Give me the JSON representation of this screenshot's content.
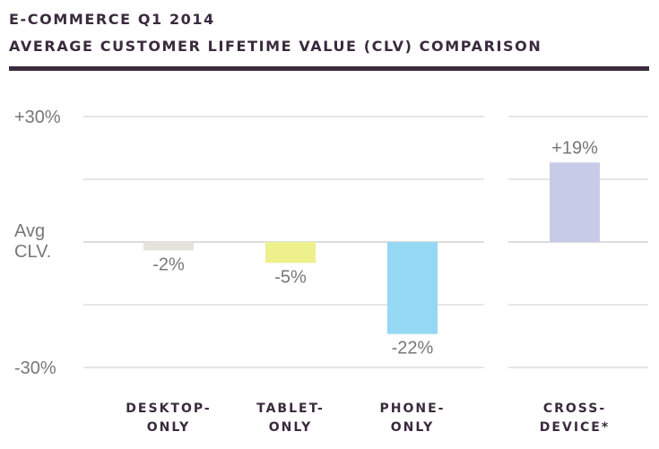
{
  "header": {
    "line1": "E-COMMERCE Q1 2014",
    "line2": "AVERAGE CUSTOMER LIFETIME VALUE (CLV) COMPARISON"
  },
  "chart_data": {
    "type": "bar",
    "title": "E-COMMERCE Q1 2014 AVERAGE CUSTOMER LIFETIME VALUE (CLV) COMPARISON",
    "categories": [
      "DESKTOP-ONLY",
      "TABLET-ONLY",
      "PHONE-ONLY",
      "CROSS-DEVICE*"
    ],
    "category_lines": [
      [
        "DESKTOP-",
        "ONLY"
      ],
      [
        "TABLET-",
        "ONLY"
      ],
      [
        "PHONE-",
        "ONLY"
      ],
      [
        "CROSS-",
        "DEVICE*"
      ]
    ],
    "values": [
      -2,
      -5,
      -22,
      19
    ],
    "value_labels": [
      "-2%",
      "-5%",
      "-22%",
      "+19%"
    ],
    "colors": [
      "#e5e2da",
      "#eef08c",
      "#94d8f4",
      "#c8cbe8"
    ],
    "ylim": [
      -30,
      30
    ],
    "yticks": [
      {
        "value": 30,
        "label": "+30%"
      },
      {
        "value": 0,
        "label": "Avg CLV."
      },
      {
        "value": -30,
        "label": "-30%"
      }
    ],
    "gridlines": [
      30,
      15,
      0,
      -15,
      -30
    ],
    "grid": true,
    "legend": "none",
    "grid_color": "#cccccc"
  }
}
